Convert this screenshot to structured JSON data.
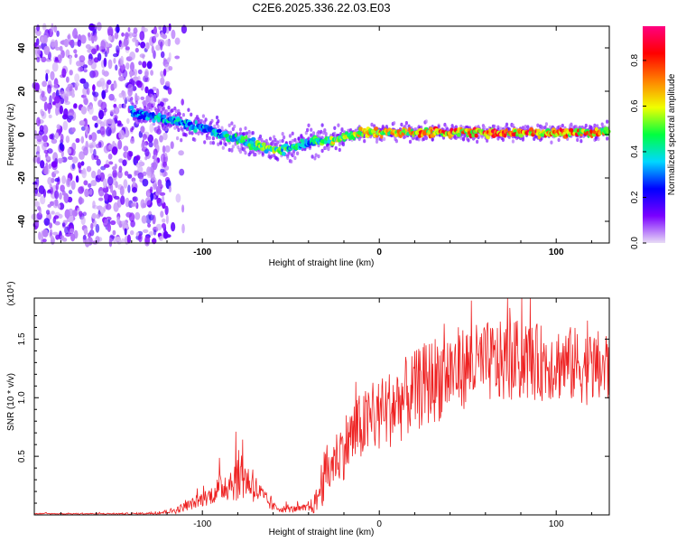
{
  "title": "C2E6.2025.336.22.03.E03",
  "chart_data": [
    {
      "type": "heatmap",
      "title": "C2E6.2025.336.22.03.E03",
      "xlabel": "Height of straight line (km)",
      "ylabel": "Frequency (Hz)",
      "xlim": [
        -195,
        130
      ],
      "ylim": [
        -50,
        50
      ],
      "x_ticks": [
        -100,
        0,
        100
      ],
      "x_tick_labels": [
        "-100",
        "0",
        "100"
      ],
      "y_ticks": [
        -40,
        -20,
        0,
        20,
        40
      ],
      "y_tick_labels": [
        "-40",
        "-20",
        "0",
        "20",
        "40"
      ],
      "colorbar": {
        "label": "Normalized spectral amplitude",
        "range": [
          0,
          0.95
        ],
        "ticks": [
          0.0,
          0.2,
          0.4,
          0.6,
          0.8
        ],
        "tick_labels": [
          "0.0",
          "0.2",
          "0.4",
          "0.6",
          "0.8"
        ],
        "colormap": [
          "#e8dcf6",
          "#7a00ff",
          "#0000ff",
          "#00d8ff",
          "#00ff40",
          "#f0ff00",
          "#ff8000",
          "#ff0000",
          "#ff0080"
        ]
      },
      "noise_region_x": [
        -195,
        -118
      ],
      "ridge": {
        "x": [
          -140,
          -120,
          -100,
          -90,
          -80,
          -70,
          -60,
          -50,
          -40,
          -30,
          -20,
          -10,
          0,
          20,
          40,
          60,
          80,
          100,
          120,
          130
        ],
        "freq": [
          10,
          7,
          3,
          0,
          -2,
          -5,
          -7,
          -6,
          -3,
          -3,
          -1,
          1,
          1,
          1,
          1,
          1,
          1,
          1,
          1,
          2
        ],
        "amplitude": [
          0.35,
          0.45,
          0.4,
          0.45,
          0.5,
          0.55,
          0.6,
          0.5,
          0.45,
          0.6,
          0.65,
          0.7,
          0.75,
          0.8,
          0.85,
          0.85,
          0.9,
          0.85,
          0.85,
          0.8
        ]
      }
    },
    {
      "type": "line",
      "xlabel": "Height of straight line (km)",
      "ylabel": "SNR (10 * v/v)",
      "y_scale_label": "(x10⁴)",
      "xlim": [
        -195,
        130
      ],
      "ylim": [
        0,
        1.85
      ],
      "x_ticks": [
        -100,
        0,
        100
      ],
      "x_tick_labels": [
        "-100",
        "0",
        "100"
      ],
      "y_ticks": [
        0.5,
        1.0,
        1.5
      ],
      "y_tick_labels": [
        "0.5",
        "1.0",
        "1.5"
      ],
      "color": "#ee2222",
      "series": [
        {
          "name": "SNR",
          "x": [
            -195,
            -180,
            -160,
            -140,
            -125,
            -115,
            -105,
            -95,
            -88,
            -82,
            -78,
            -75,
            -70,
            -65,
            -60,
            -55,
            -50,
            -45,
            -40,
            -36,
            -33,
            -30,
            -25,
            -20,
            -15,
            -10,
            0,
            10,
            20,
            30,
            40,
            50,
            60,
            70,
            80,
            90,
            100,
            110,
            120,
            130
          ],
          "mean": [
            0.01,
            0.01,
            0.01,
            0.01,
            0.015,
            0.04,
            0.1,
            0.17,
            0.25,
            0.3,
            0.35,
            0.3,
            0.22,
            0.14,
            0.07,
            0.05,
            0.05,
            0.05,
            0.06,
            0.1,
            0.25,
            0.35,
            0.48,
            0.58,
            0.68,
            0.75,
            0.85,
            0.95,
            1.05,
            1.15,
            1.22,
            1.27,
            1.3,
            1.3,
            1.32,
            1.3,
            1.3,
            1.28,
            1.25,
            1.25
          ],
          "spread": [
            0.005,
            0.005,
            0.005,
            0.008,
            0.01,
            0.03,
            0.05,
            0.08,
            0.14,
            0.18,
            0.25,
            0.16,
            0.13,
            0.08,
            0.04,
            0.03,
            0.03,
            0.03,
            0.04,
            0.1,
            0.2,
            0.25,
            0.22,
            0.28,
            0.3,
            0.3,
            0.32,
            0.35,
            0.35,
            0.38,
            0.38,
            0.35,
            0.35,
            0.35,
            0.35,
            0.33,
            0.33,
            0.33,
            0.32,
            0.35
          ]
        }
      ]
    }
  ]
}
